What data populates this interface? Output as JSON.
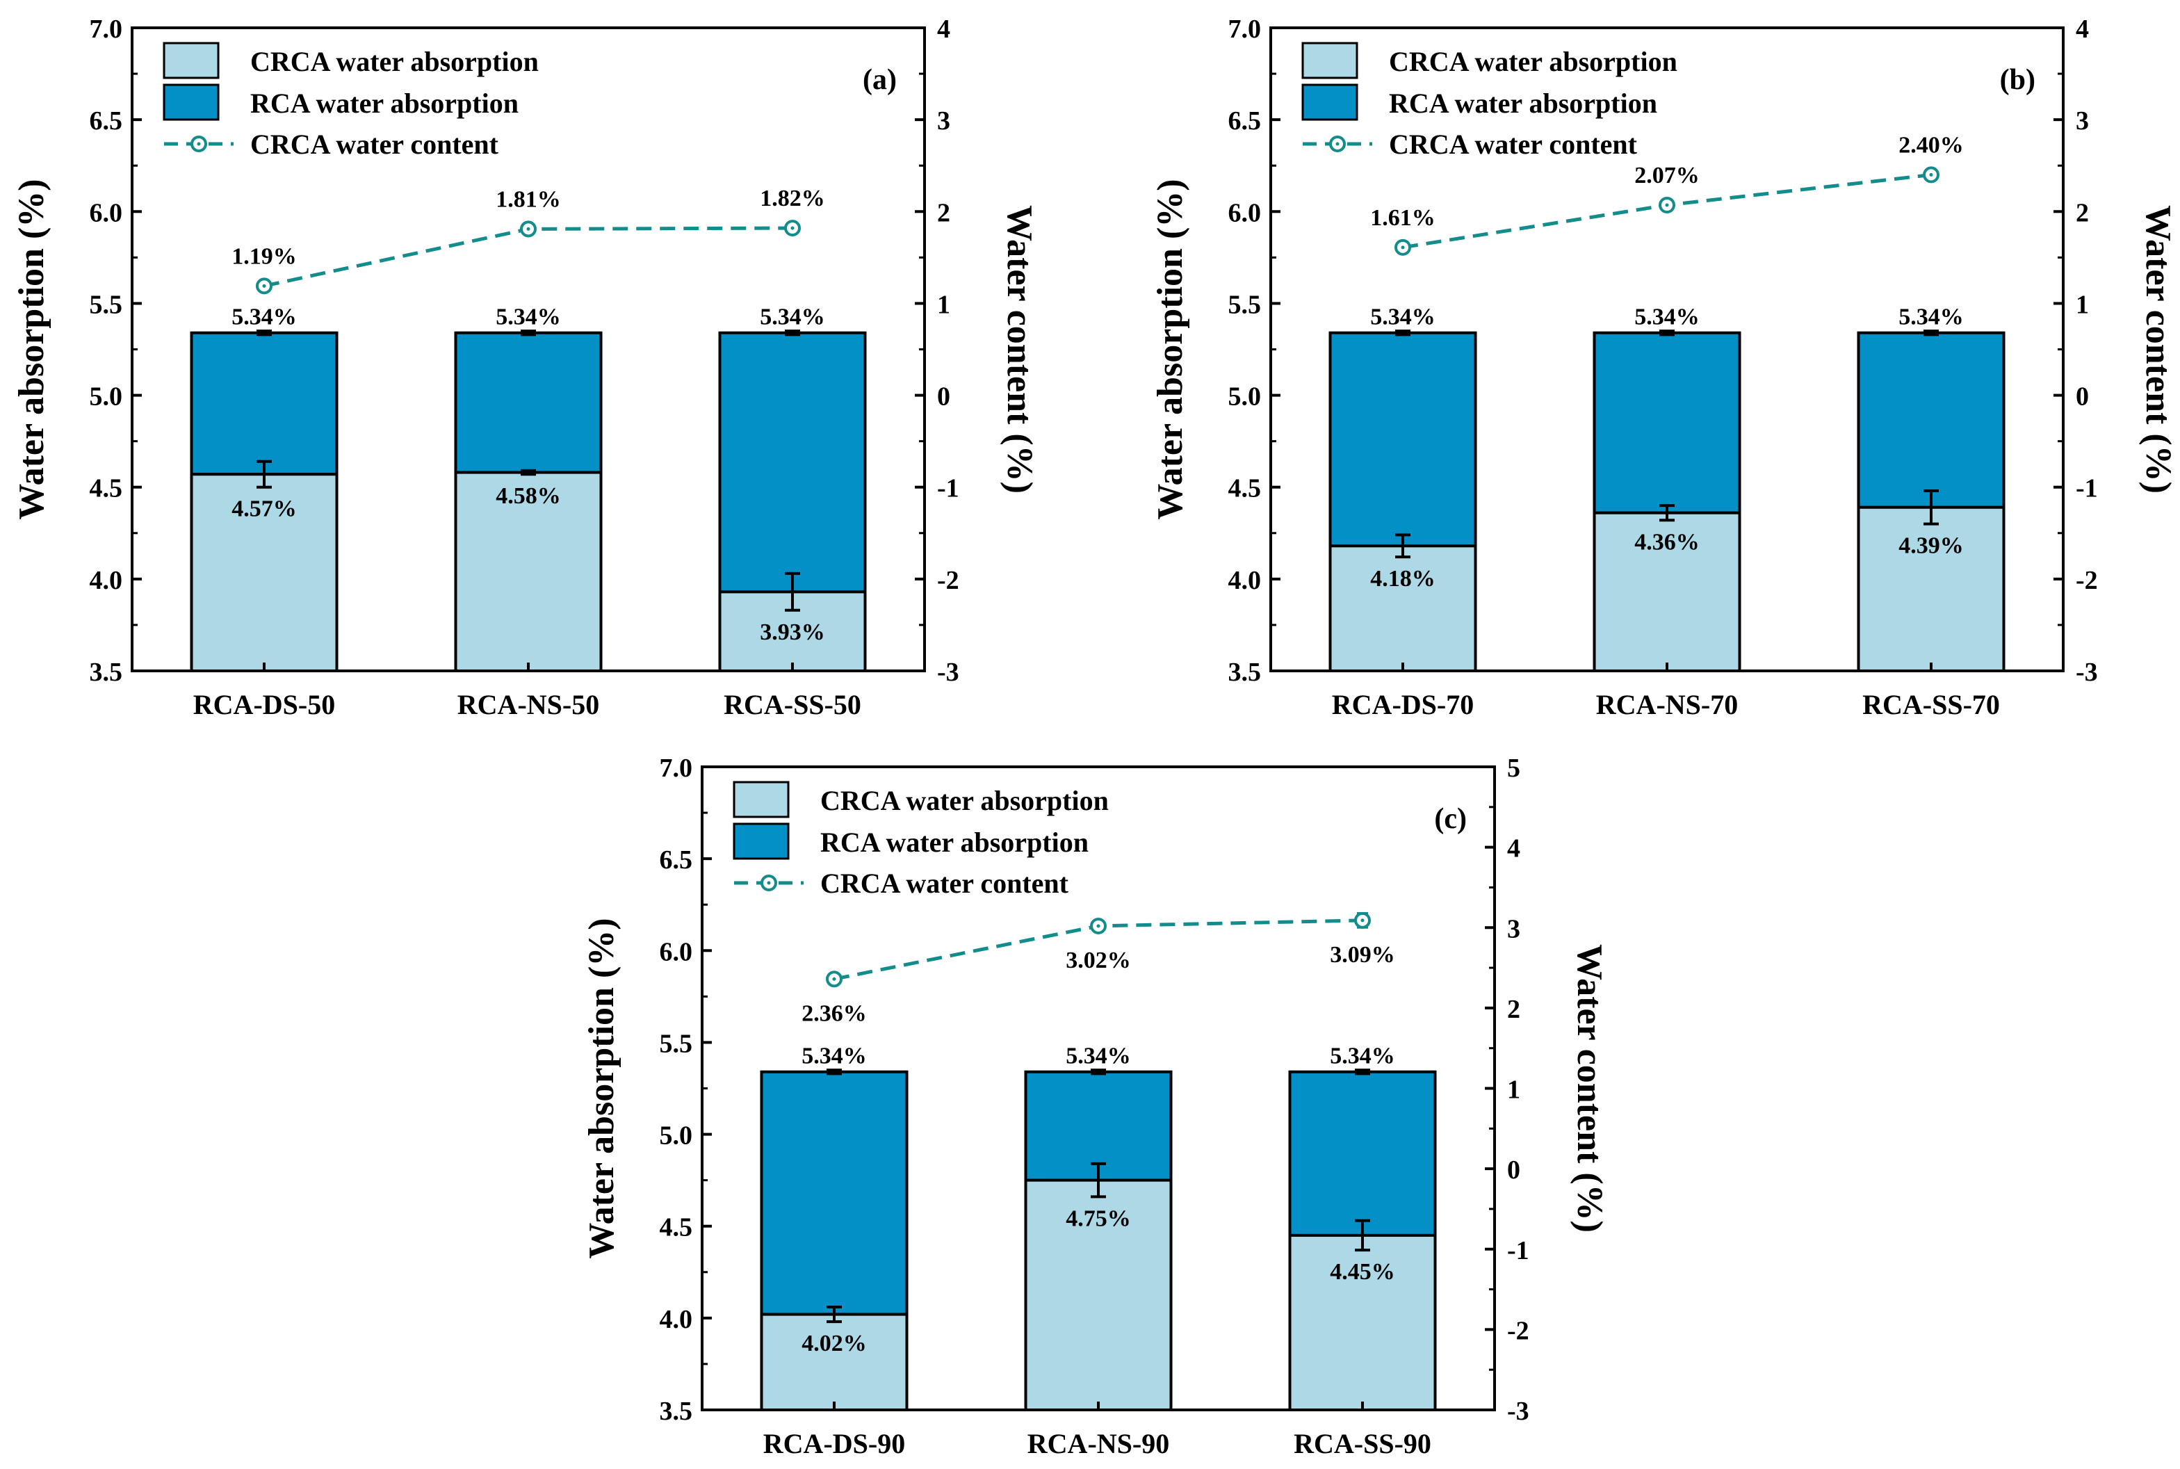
{
  "colors": {
    "crca": "#add8e6",
    "rca": "#0390c6",
    "line": "#138c8c",
    "axis": "#000000"
  },
  "chart_data": [
    {
      "id": "a",
      "panel_label": "(a)",
      "type": "bar",
      "stacked": true,
      "categories": [
        "RCA-DS-50",
        "RCA-NS-50",
        "RCA-SS-50"
      ],
      "series": [
        {
          "name": "CRCA water absorption",
          "values": [
            4.57,
            4.58,
            3.93
          ],
          "errors": [
            0.07,
            0.01,
            0.1
          ],
          "labels": [
            "4.57%",
            "4.58%",
            "3.93%"
          ]
        },
        {
          "name": "RCA water absorption",
          "values": [
            5.34,
            5.34,
            5.34
          ],
          "errors": [
            0.01,
            0.01,
            0.01
          ],
          "labels": [
            "5.34%",
            "5.34%",
            "5.34%"
          ]
        }
      ],
      "line_series": {
        "name": "CRCA water content",
        "axis": "right",
        "values": [
          1.19,
          1.81,
          1.82
        ],
        "errors": [
          0.04,
          0.04,
          0.04
        ],
        "labels": [
          "1.19%",
          "1.81%",
          "1.82%"
        ],
        "label_side": "above"
      },
      "ylabel": "Water absorption (%)",
      "y2label": "Water content (%)",
      "ylim": [
        3.5,
        7.0
      ],
      "yticks": [
        "3.5",
        "4.0",
        "4.5",
        "5.0",
        "5.5",
        "6.0",
        "6.5",
        "7.0"
      ],
      "y2lim": [
        -3,
        4
      ],
      "y2ticks": [
        "-3",
        "-2",
        "-1",
        "0",
        "1",
        "2",
        "3",
        "4"
      ],
      "legend": [
        "CRCA water absorption",
        "RCA water absorption",
        "CRCA water content"
      ],
      "legend_position": "top-left"
    },
    {
      "id": "b",
      "panel_label": "(b)",
      "type": "bar",
      "stacked": true,
      "categories": [
        "RCA-DS-70",
        "RCA-NS-70",
        "RCA-SS-70"
      ],
      "series": [
        {
          "name": "CRCA water absorption",
          "values": [
            4.18,
            4.36,
            4.39
          ],
          "errors": [
            0.06,
            0.04,
            0.09
          ],
          "labels": [
            "4.18%",
            "4.36%",
            "4.39%"
          ]
        },
        {
          "name": "RCA water absorption",
          "values": [
            5.34,
            5.34,
            5.34
          ],
          "errors": [
            0.01,
            0.01,
            0.01
          ],
          "labels": [
            "5.34%",
            "5.34%",
            "5.34%"
          ]
        }
      ],
      "line_series": {
        "name": "CRCA water content",
        "axis": "right",
        "values": [
          1.61,
          2.07,
          2.4
        ],
        "errors": [
          0.06,
          0.04,
          0.05
        ],
        "labels": [
          "1.61%",
          "2.07%",
          "2.40%"
        ],
        "label_side": "above"
      },
      "ylabel": "Water absorption (%)",
      "y2label": "Water content (%)",
      "ylim": [
        3.5,
        7.0
      ],
      "yticks": [
        "3.5",
        "4.0",
        "4.5",
        "5.0",
        "5.5",
        "6.0",
        "6.5",
        "7.0"
      ],
      "y2lim": [
        -3,
        4
      ],
      "y2ticks": [
        "-3",
        "-2",
        "-1",
        "0",
        "1",
        "2",
        "3",
        "4"
      ],
      "legend": [
        "CRCA water absorption",
        "RCA water absorption",
        "CRCA water content"
      ],
      "legend_position": "top-left"
    },
    {
      "id": "c",
      "panel_label": "(c)",
      "type": "bar",
      "stacked": true,
      "categories": [
        "RCA-DS-90",
        "RCA-NS-90",
        "RCA-SS-90"
      ],
      "series": [
        {
          "name": "CRCA water absorption",
          "values": [
            4.02,
            4.75,
            4.45
          ],
          "errors": [
            0.04,
            0.09,
            0.08
          ],
          "labels": [
            "4.02%",
            "4.75%",
            "4.45%"
          ]
        },
        {
          "name": "RCA water absorption",
          "values": [
            5.34,
            5.34,
            5.34
          ],
          "errors": [
            0.01,
            0.01,
            0.01
          ],
          "labels": [
            "5.34%",
            "5.34%",
            "5.34%"
          ]
        }
      ],
      "line_series": {
        "name": "CRCA water content",
        "axis": "right",
        "values": [
          2.36,
          3.02,
          3.09
        ],
        "errors": [
          0.04,
          0.04,
          0.09
        ],
        "labels": [
          "2.36%",
          "3.02%",
          "3.09%"
        ],
        "label_side": "below"
      },
      "ylabel": "Water absorption (%)",
      "y2label": "Water content (%)",
      "ylim": [
        3.5,
        7.0
      ],
      "yticks": [
        "3.5",
        "4.0",
        "4.5",
        "5.0",
        "5.5",
        "6.0",
        "6.5",
        "7.0"
      ],
      "y2lim": [
        -3,
        5
      ],
      "y2ticks": [
        "-3",
        "-2",
        "-1",
        "0",
        "1",
        "2",
        "3",
        "4",
        "5"
      ],
      "legend": [
        "CRCA water absorption",
        "RCA water absorption",
        "CRCA water content"
      ],
      "legend_position": "top-left"
    }
  ]
}
